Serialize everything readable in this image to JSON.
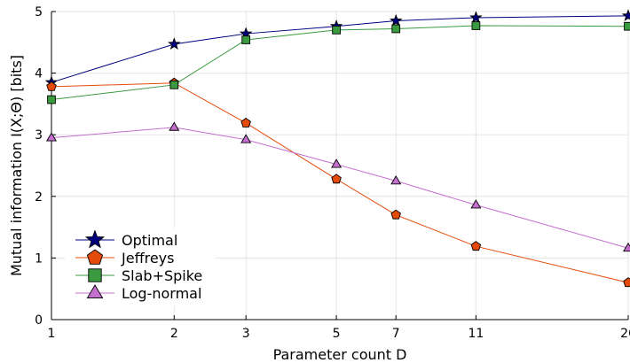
{
  "chart_data": {
    "type": "line",
    "title": "",
    "xlabel": "Parameter count D",
    "ylabel": "Mutual information I(X;Θ) [bits]",
    "x_scale": "log",
    "x": [
      1,
      2,
      3,
      5,
      7,
      11,
      26
    ],
    "xticks": [
      "1",
      "2",
      "3",
      "5",
      "7",
      "11",
      "26"
    ],
    "ylim": [
      0,
      5
    ],
    "yticks": [
      "0",
      "1",
      "2",
      "3",
      "4",
      "5"
    ],
    "grid": true,
    "legend_position": "bottom-left",
    "series": [
      {
        "name": "Optimal",
        "color": "#00007f",
        "marker": "star",
        "values": [
          3.85,
          4.47,
          4.64,
          4.76,
          4.85,
          4.9,
          4.93
        ]
      },
      {
        "name": "Jeffreys",
        "color": "#e44a0a",
        "marker": "pentagon",
        "values": [
          3.78,
          3.84,
          3.19,
          2.28,
          1.7,
          1.19,
          0.6
        ]
      },
      {
        "name": "Slab+Spike",
        "color": "#3a9a3f",
        "marker": "square",
        "values": [
          3.57,
          3.81,
          4.54,
          4.7,
          4.72,
          4.77,
          4.76
        ]
      },
      {
        "name": "Log-normal",
        "color": "#c46fce",
        "marker": "triangle",
        "values": [
          2.95,
          3.12,
          2.92,
          2.52,
          2.25,
          1.86,
          1.16
        ]
      }
    ]
  }
}
